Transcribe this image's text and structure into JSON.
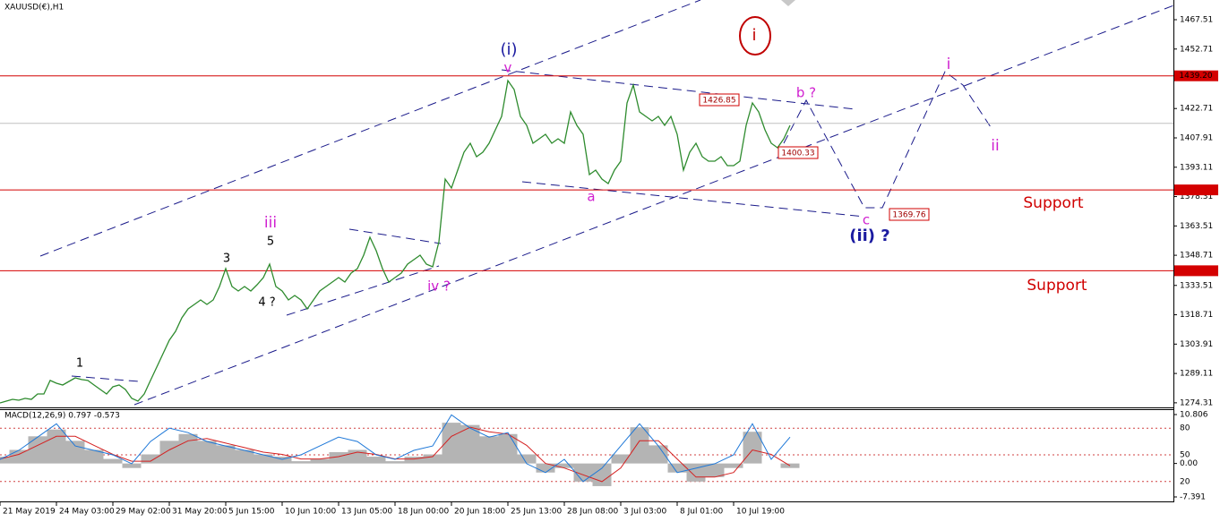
{
  "chart_data": [
    {
      "type": "line",
      "title": "XAUUSD(€),H1",
      "color": "#2e8b2e",
      "categories": [
        "21 May 2019",
        null,
        null,
        null,
        null,
        null,
        null,
        null,
        null,
        "24 May 03:00",
        null,
        null,
        null,
        null,
        null,
        null,
        null,
        null,
        "29 May 02:00",
        null,
        null,
        null,
        null,
        null,
        null,
        null,
        null,
        "31 May 20:00",
        null,
        null,
        null,
        null,
        null,
        null,
        null,
        null,
        "5 Jun 15:00",
        null,
        null,
        null,
        null,
        null,
        null,
        null,
        null,
        "10 Jun 10:00",
        null,
        null,
        null,
        null,
        null,
        null,
        null,
        null,
        "13 Jun 05:00",
        null,
        null,
        null,
        null,
        null,
        null,
        null,
        null,
        "18 Jun 00:00",
        null,
        null,
        null,
        null,
        null,
        null,
        null,
        null,
        "20 Jun 18:00",
        null,
        null,
        null,
        null,
        null,
        null,
        null,
        null,
        "25 Jun 13:00",
        null,
        null,
        null,
        null,
        null,
        null,
        null,
        null,
        "28 Jun 08:00",
        null,
        null,
        null,
        null,
        null,
        null,
        null,
        null,
        "3 Jul 03:00",
        null,
        null,
        null,
        null,
        null,
        null,
        null,
        null,
        "8 Jul 01:00",
        null,
        null,
        null,
        null,
        null,
        null,
        null,
        null,
        "10 Jul 19:00",
        null,
        null,
        null,
        null,
        null,
        null,
        null,
        null,
        null
      ],
      "values": [
        1274.28,
        1275.18,
        1276.08,
        1275.63,
        1276.54,
        1276.08,
        1278.79,
        1278.79,
        1285.57,
        1284.21,
        1283.31,
        1285.11,
        1286.92,
        1286.02,
        1285.57,
        1283.31,
        1281.05,
        1278.79,
        1282.4,
        1283.31,
        1281.05,
        1276.54,
        1275.18,
        1278.79,
        1285.57,
        1292.34,
        1299.11,
        1305.88,
        1310.4,
        1317.17,
        1321.68,
        1323.94,
        1326.2,
        1323.94,
        1326.2,
        1332.97,
        1342.0,
        1332.97,
        1330.71,
        1332.97,
        1330.71,
        1333.87,
        1337.48,
        1344.26,
        1332.97,
        1330.71,
        1326.2,
        1328.45,
        1326.2,
        1321.68,
        1326.2,
        1330.71,
        1332.97,
        1335.23,
        1337.48,
        1335.23,
        1339.74,
        1342.0,
        1348.77,
        1357.8,
        1351.03,
        1342.0,
        1335.23,
        1337.48,
        1339.74,
        1344.26,
        1346.51,
        1348.77,
        1344.26,
        1342.9,
        1355.54,
        1387.15,
        1382.63,
        1391.66,
        1400.69,
        1405.2,
        1398.43,
        1400.69,
        1405.2,
        1411.98,
        1418.75,
        1436.81,
        1432.29,
        1418.75,
        1414.23,
        1405.2,
        1407.46,
        1409.72,
        1405.2,
        1407.46,
        1405.2,
        1421.01,
        1414.23,
        1409.72,
        1389.4,
        1391.66,
        1387.15,
        1384.89,
        1391.66,
        1396.18,
        1425.52,
        1434.55,
        1421.01,
        1418.75,
        1416.49,
        1418.75,
        1414.23,
        1418.75,
        1409.72,
        1391.66,
        1400.69,
        1405.2,
        1398.43,
        1396.18,
        1396.18,
        1398.43,
        1393.92,
        1393.92,
        1396.18,
        1414.23,
        1425.52,
        1421.01,
        1411.98,
        1405.2,
        1402.95,
        1407.46,
        1414.23
      ],
      "ylim": [
        1272.0,
        1477.44
      ],
      "yticks": [
        1467.51,
        1452.71,
        1422.71,
        1407.91,
        1393.11,
        1378.31,
        1363.51,
        1348.71,
        1333.51,
        1318.71,
        1303.91,
        1289.11,
        1274.31
      ],
      "levels": [
        {
          "value": 1439.2,
          "label": "1439.20",
          "color": "#d40000"
        },
        {
          "value": 1381.68,
          "color": "#d40000"
        },
        {
          "value": 1340.91,
          "color": "#d40000"
        }
      ],
      "current_price": {
        "value": 1415.23,
        "color": "#c0c0c0"
      },
      "annotations": [
        "(i)",
        "v",
        "i",
        "1",
        "3",
        "5",
        "iii",
        "4 ?",
        "iv ?",
        "a",
        "b ?",
        "c",
        "(ii) ?",
        "i",
        "ii",
        "Support",
        "Support",
        "1426.85",
        "1400.33",
        "1369.76"
      ]
    },
    {
      "type": "macd",
      "title": "MACD(12,26,9) 0.797 -0.573",
      "ylim": [
        -8.38,
        11.99
      ],
      "yticks": [
        10.806,
        {
          "value": 0,
          "label": "0.00"
        },
        -7.391
      ],
      "y2lim": [
        -2.4,
        101.4
      ],
      "y2ticks": [
        80,
        50,
        20
      ],
      "series": [
        {
          "type": "histogram",
          "color": "#b4b4b4",
          "values": [
            1.5,
            3,
            6,
            7.5,
            5,
            3,
            1,
            -1,
            2,
            5,
            6.5,
            5,
            4,
            3,
            2,
            1.5,
            0.5,
            1,
            2.5,
            3,
            1.5,
            0.5,
            1.5,
            2,
            9,
            8.5,
            6,
            6.5,
            2,
            -2,
            -1,
            -4,
            -5,
            2,
            8,
            4,
            -2,
            -4,
            -3,
            -1,
            7,
            0,
            -1
          ]
        },
        {
          "type": "line",
          "color": "#d42020",
          "values": [
            1,
            2,
            4,
            6,
            6,
            4,
            2,
            0.5,
            0.5,
            3,
            5,
            5.5,
            4.5,
            3.5,
            2.5,
            2,
            1,
            1,
            1.5,
            2.5,
            2,
            1,
            1,
            1.5,
            6,
            8,
            7,
            6.5,
            4,
            0,
            -1,
            -2.5,
            -4,
            -1,
            5,
            5,
            1,
            -3,
            -3,
            -2,
            3,
            2,
            -0.5
          ]
        },
        {
          "type": "line",
          "axis": "y2",
          "color": "#1e78d8",
          "values": [
            45,
            55,
            70,
            85,
            60,
            55,
            50,
            40,
            65,
            80,
            75,
            65,
            60,
            55,
            50,
            45,
            50,
            60,
            70,
            65,
            50,
            45,
            55,
            60,
            95,
            80,
            70,
            75,
            40,
            30,
            45,
            20,
            35,
            60,
            85,
            60,
            30,
            35,
            40,
            50,
            85,
            45,
            70
          ]
        }
      ]
    }
  ]
}
